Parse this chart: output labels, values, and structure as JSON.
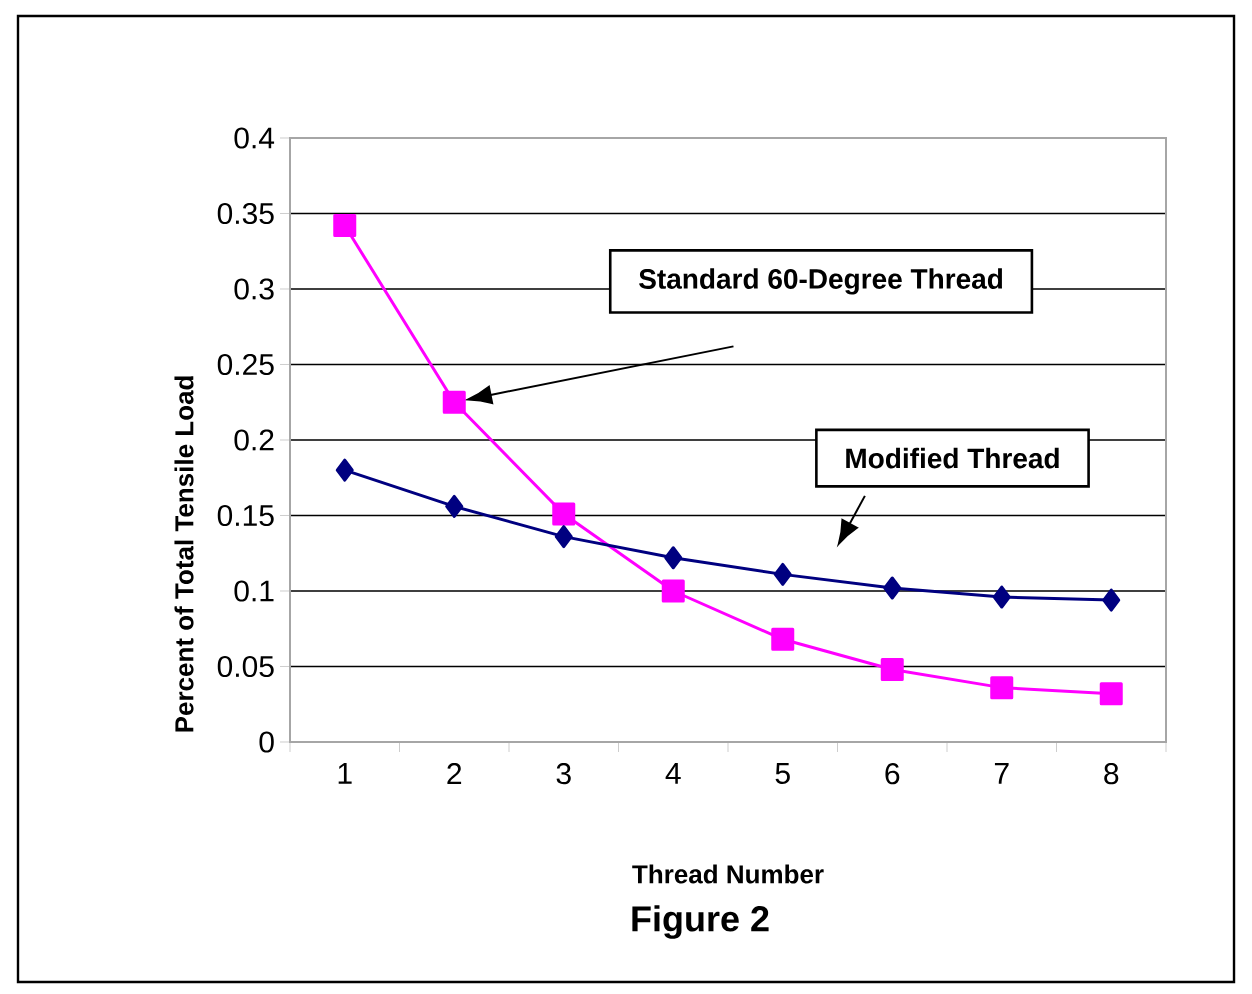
{
  "chart_data": {
    "type": "line",
    "title": "Figure 2",
    "xlabel": "Thread Number",
    "ylabel": "Percent of Total Tensile Load",
    "categories": [
      "1",
      "2",
      "3",
      "4",
      "5",
      "6",
      "7",
      "8"
    ],
    "series": [
      {
        "color": "#ff00ff",
        "marker": "square",
        "values": [
          0.342,
          0.225,
          0.151,
          0.1,
          0.068,
          0.048,
          0.036,
          0.032
        ]
      },
      {
        "color": "#000080",
        "marker": "diamond",
        "values": [
          0.18,
          0.156,
          0.136,
          0.122,
          0.111,
          0.102,
          0.096,
          0.094
        ]
      }
    ],
    "annotations": [
      "Standard 60-Degree Thread",
      "Modified Thread"
    ],
    "ylim": [
      0,
      0.4
    ],
    "yticks": [
      0,
      0.05,
      0.1,
      0.15,
      0.2,
      0.25,
      0.3,
      0.35,
      0.4
    ],
    "grid": "y",
    "legend": false,
    "line_style": "solid"
  }
}
